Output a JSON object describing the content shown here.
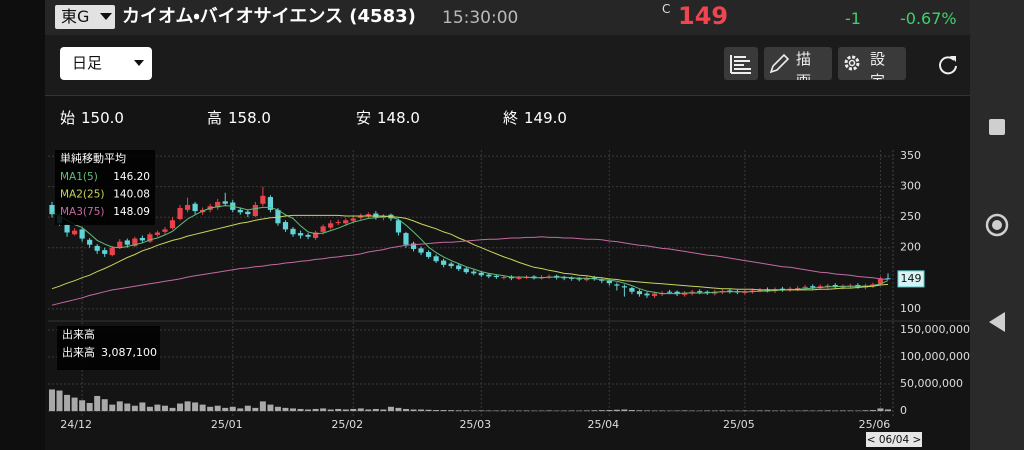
{
  "header": {
    "exchange": "東G",
    "name": "カイオム・バイオサイエンス (4583)",
    "time": "15:30:00",
    "price_flag": "C",
    "price": "149",
    "change": "-1",
    "change_pct": "-0.67%"
  },
  "toolbar": {
    "period": "日足",
    "draw_button": "描画",
    "settings_button": "設定"
  },
  "ohlc": [
    {
      "label": "始",
      "value": "150.0"
    },
    {
      "label": "高",
      "value": "158.0"
    },
    {
      "label": "安",
      "value": "148.0"
    },
    {
      "label": "終",
      "value": "149.0"
    }
  ],
  "chart_data": [
    {
      "type": "candlestick",
      "up_color": "#e8434d",
      "down_color": "#62d3d6",
      "grid": true,
      "ylim": [
        85,
        360
      ],
      "yticks": [
        100,
        200,
        250,
        300,
        350
      ],
      "categories": [
        null,
        null,
        null,
        null,
        "24/12",
        null,
        null,
        null,
        null,
        null,
        null,
        null,
        null,
        null,
        null,
        null,
        null,
        null,
        null,
        null,
        null,
        null,
        null,
        null,
        "25/01",
        null,
        null,
        null,
        null,
        null,
        null,
        null,
        null,
        null,
        null,
        null,
        null,
        null,
        null,
        null,
        "25/02",
        null,
        null,
        null,
        null,
        null,
        null,
        null,
        null,
        null,
        null,
        null,
        null,
        null,
        null,
        null,
        null,
        "25/03",
        null,
        null,
        null,
        null,
        null,
        null,
        null,
        null,
        null,
        null,
        null,
        null,
        null,
        null,
        null,
        null,
        "25/04",
        null,
        null,
        null,
        null,
        null,
        null,
        null,
        null,
        null,
        null,
        null,
        null,
        null,
        null,
        null,
        null,
        null,
        "25/05",
        null,
        null,
        null,
        null,
        null,
        null,
        null,
        null,
        null,
        null,
        null,
        null,
        null,
        null,
        null,
        null,
        null,
        "25/06",
        null
      ],
      "open": [
        270,
        252,
        238,
        222,
        230,
        213,
        203,
        196,
        188,
        201,
        212,
        203,
        216,
        210,
        221,
        226,
        232,
        247,
        262,
        272,
        258,
        262,
        266,
        276,
        274,
        262,
        259,
        252,
        272,
        283,
        262,
        242,
        231,
        224,
        221,
        216,
        226,
        233,
        241,
        240,
        244,
        249,
        251,
        256,
        249,
        254,
        245,
        224,
        207,
        199,
        193,
        186,
        179,
        174,
        171,
        166,
        161,
        159,
        156,
        154,
        151,
        153,
        149,
        151,
        153,
        150,
        151,
        154,
        152,
        151,
        150,
        147,
        151,
        148,
        146,
        140,
        137,
        134,
        129,
        125,
        121,
        124,
        128,
        128,
        123,
        125,
        129,
        128,
        125,
        127,
        130,
        129,
        126,
        128,
        130,
        132,
        129,
        133,
        131,
        132,
        134,
        137,
        134,
        136,
        139,
        135,
        137,
        139,
        135,
        137,
        141,
        150
      ],
      "high": [
        275,
        256,
        240,
        232,
        232,
        216,
        206,
        200,
        203,
        214,
        215,
        218,
        220,
        225,
        228,
        234,
        250,
        270,
        282,
        275,
        266,
        272,
        280,
        290,
        278,
        266,
        262,
        275,
        300,
        286,
        265,
        245,
        234,
        228,
        224,
        228,
        238,
        245,
        246,
        248,
        252,
        256,
        258,
        260,
        255,
        256,
        248,
        226,
        210,
        202,
        196,
        189,
        182,
        177,
        174,
        169,
        164,
        162,
        158,
        156,
        155,
        155,
        154,
        155,
        155,
        155,
        156,
        156,
        154,
        153,
        152,
        153,
        154,
        150,
        148,
        143,
        140,
        136,
        132,
        128,
        128,
        129,
        131,
        130,
        129,
        131,
        132,
        130,
        131,
        132,
        133,
        131,
        131,
        133,
        134,
        135,
        135,
        136,
        136,
        137,
        139,
        140,
        140,
        141,
        142,
        140,
        141,
        142,
        141,
        143,
        153,
        158
      ],
      "low": [
        250,
        236,
        218,
        220,
        210,
        200,
        190,
        185,
        186,
        198,
        200,
        201,
        208,
        208,
        218,
        222,
        230,
        245,
        258,
        255,
        254,
        258,
        262,
        268,
        258,
        254,
        250,
        250,
        268,
        258,
        236,
        226,
        218,
        215,
        214,
        213,
        222,
        230,
        237,
        236,
        240,
        245,
        248,
        246,
        245,
        244,
        220,
        200,
        194,
        188,
        182,
        175,
        168,
        166,
        162,
        157,
        155,
        152,
        150,
        149,
        148,
        147,
        147,
        149,
        148,
        148,
        149,
        148,
        147,
        146,
        145,
        145,
        146,
        142,
        138,
        130,
        120,
        124,
        120,
        118,
        118,
        121,
        124,
        121,
        120,
        122,
        124,
        123,
        122,
        124,
        125,
        124,
        123,
        125,
        127,
        127,
        126,
        128,
        128,
        129,
        131,
        132,
        131,
        133,
        133,
        132,
        134,
        133,
        132,
        134,
        139,
        148
      ],
      "close": [
        255,
        240,
        225,
        228,
        215,
        205,
        195,
        190,
        200,
        210,
        205,
        215,
        212,
        222,
        225,
        230,
        245,
        265,
        270,
        260,
        262,
        268,
        275,
        272,
        262,
        258,
        255,
        270,
        285,
        262,
        240,
        230,
        222,
        220,
        218,
        225,
        235,
        240,
        242,
        245,
        248,
        252,
        255,
        250,
        252,
        248,
        225,
        205,
        198,
        192,
        185,
        178,
        172,
        170,
        165,
        160,
        158,
        155,
        153,
        152,
        152,
        150,
        151,
        152,
        150,
        152,
        153,
        151,
        150,
        149,
        148,
        150,
        149,
        146,
        142,
        138,
        135,
        128,
        124,
        122,
        125,
        126,
        127,
        124,
        126,
        128,
        127,
        126,
        128,
        129,
        128,
        127,
        128,
        130,
        131,
        130,
        132,
        131,
        133,
        134,
        136,
        135,
        137,
        138,
        136,
        137,
        138,
        136,
        138,
        140,
        150,
        149
      ],
      "legend_title": "単純移動平均",
      "series": [
        {
          "name": "MA1(5)",
          "color": "#5fc07a",
          "last_label": "146.20",
          "values": [
            258,
            252,
            245,
            238,
            233,
            223,
            212,
            206,
            201,
            200,
            202,
            205,
            208,
            213,
            216,
            221,
            227,
            237,
            247,
            254,
            260,
            265,
            267,
            269,
            268,
            265,
            262,
            264,
            266,
            266,
            262,
            254,
            248,
            236,
            226,
            223,
            224,
            228,
            232,
            237,
            242,
            245,
            248,
            249,
            251,
            251,
            246,
            237,
            226,
            214,
            201,
            192,
            185,
            179,
            174,
            169,
            165,
            161,
            158,
            156,
            154,
            152,
            152,
            152,
            151,
            151,
            152,
            152,
            152,
            151,
            150,
            150,
            149,
            148,
            147,
            145,
            142,
            138,
            133,
            129,
            127,
            125,
            125,
            125,
            126,
            126,
            126,
            126,
            127,
            128,
            128,
            128,
            128,
            128,
            129,
            129,
            130,
            131,
            131,
            132,
            133,
            134,
            135,
            136,
            136,
            137,
            137,
            137,
            137,
            138,
            141,
            146.2
          ]
        },
        {
          "name": "MA2(25)",
          "color": "#c9d45c",
          "last_label": "140.08",
          "values": [
            133,
            137,
            142,
            146,
            151,
            155,
            161,
            166,
            172,
            178,
            184,
            189,
            195,
            199,
            204,
            208,
            212,
            215,
            219,
            222,
            225,
            228,
            231,
            234,
            237,
            240,
            242,
            245,
            247,
            249,
            250,
            252,
            253,
            253,
            253,
            253,
            253,
            253,
            253,
            252,
            252,
            252,
            252,
            252,
            252,
            251,
            250,
            248,
            244,
            239,
            235,
            231,
            226,
            222,
            216,
            211,
            205,
            200,
            195,
            190,
            185,
            181,
            176,
            172,
            168,
            166,
            163,
            161,
            158,
            157,
            155,
            154,
            152,
            151,
            149,
            148,
            146,
            145,
            144,
            143,
            142,
            141,
            140,
            139,
            138,
            137,
            136,
            135,
            134,
            133,
            133,
            132,
            132,
            132,
            131,
            131,
            131,
            131,
            131,
            131,
            131,
            131,
            132,
            132,
            133,
            134,
            134,
            135,
            136,
            137,
            139,
            140.08
          ]
        },
        {
          "name": "MA3(75)",
          "color": "#c46aa2",
          "last_label": "148.09",
          "values": [
            106,
            109,
            112,
            115,
            118,
            122,
            125,
            128,
            131,
            133,
            135,
            137,
            139,
            141,
            143,
            145,
            147,
            149,
            152,
            154,
            156,
            158,
            160,
            162,
            164,
            166,
            167,
            169,
            170,
            172,
            173,
            175,
            176,
            178,
            179,
            181,
            182,
            184,
            185,
            187,
            188,
            190,
            193,
            195,
            197,
            200,
            202,
            204,
            205,
            206,
            207,
            208,
            209,
            209,
            210,
            211,
            212,
            213,
            214,
            214,
            215,
            216,
            216,
            217,
            217,
            218,
            217,
            217,
            216,
            216,
            215,
            214,
            214,
            213,
            211,
            210,
            208,
            206,
            204,
            203,
            201,
            199,
            198,
            196,
            194,
            192,
            190,
            188,
            187,
            185,
            183,
            181,
            179,
            177,
            175,
            173,
            171,
            169,
            168,
            166,
            164,
            162,
            160,
            159,
            157,
            156,
            155,
            153,
            152,
            151,
            149,
            148.09
          ]
        }
      ],
      "cursor_label": "< 06/04 >"
    },
    {
      "type": "bar",
      "title": "出来高",
      "value_label": "3,087,100",
      "color": "#a9a9a9",
      "ylim": [
        -9000000,
        159000000
      ],
      "yticks": [
        {
          "value": 0,
          "label": "0"
        },
        {
          "value": 50000000,
          "label": "50,000,000"
        },
        {
          "value": 100000000,
          "label": "100,000,000"
        },
        {
          "value": 150000000,
          "label": "150,000,000"
        }
      ],
      "values": [
        40000000,
        38000000,
        30000000,
        25000000,
        20000000,
        15000000,
        28000000,
        22000000,
        12000000,
        18000000,
        14000000,
        10000000,
        16000000,
        8000000,
        12000000,
        10000000,
        6000000,
        14000000,
        18000000,
        16000000,
        12000000,
        8000000,
        10000000,
        6000000,
        8000000,
        5000000,
        10000000,
        6000000,
        18000000,
        12000000,
        8000000,
        6000000,
        5000000,
        4000000,
        3000000,
        4000000,
        5000000,
        3000000,
        4000000,
        3000000,
        4000000,
        5000000,
        3000000,
        4000000,
        3000000,
        8000000,
        6000000,
        4000000,
        3000000,
        3000000,
        2500000,
        2000000,
        2000000,
        1800000,
        1500000,
        1500000,
        1200000,
        1200000,
        1000000,
        1000000,
        1200000,
        900000,
        1000000,
        1100000,
        900000,
        1000000,
        1200000,
        900000,
        1000000,
        1100000,
        1000000,
        1200000,
        1500000,
        1800000,
        2000000,
        2500000,
        3000000,
        2000000,
        1500000,
        1200000,
        1000000,
        1100000,
        900000,
        1000000,
        1200000,
        1000000,
        900000,
        1100000,
        1000000,
        1200000,
        1000000,
        900000,
        1100000,
        1000000,
        1200000,
        1300000,
        1000000,
        1100000,
        900000,
        1000000,
        1200000,
        1000000,
        1100000,
        1300000,
        1000000,
        1200000,
        1100000,
        1000000,
        1500000,
        2000000,
        5000000,
        3087100
      ]
    }
  ]
}
